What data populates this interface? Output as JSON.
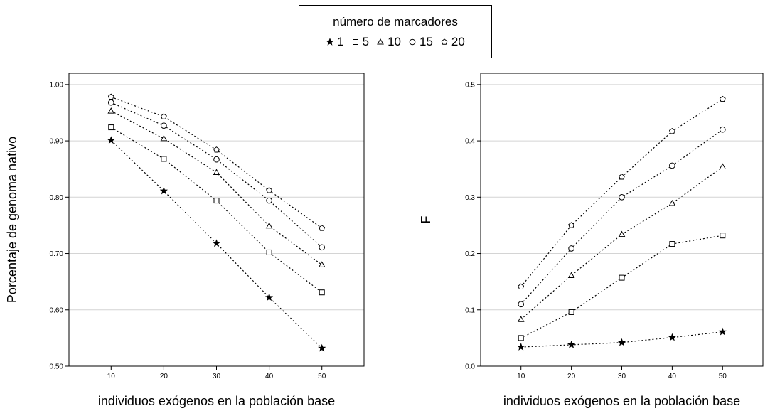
{
  "legend": {
    "title": "número de marcadores",
    "items": [
      {
        "label": "1",
        "marker": "star"
      },
      {
        "label": "5",
        "marker": "square"
      },
      {
        "label": "10",
        "marker": "triangle"
      },
      {
        "label": "15",
        "marker": "circle"
      },
      {
        "label": "20",
        "marker": "pentagon"
      }
    ]
  },
  "chart_data": [
    {
      "type": "line",
      "xlabel": "individuos exógenos en la población base",
      "ylabel": "Porcentaje de genoma nativo",
      "xlim": [
        2,
        58
      ],
      "ylim": [
        0.5,
        1.02
      ],
      "x_ticks": [
        10,
        20,
        30,
        40,
        50
      ],
      "y_ticks": [
        0.5,
        0.6,
        0.7,
        0.8,
        0.9,
        1.0
      ],
      "y_tick_labels": [
        "0.50",
        "0.60",
        "0.70",
        "0.80",
        "0.90",
        "1.00"
      ],
      "grid": "horizontal",
      "x": [
        10,
        20,
        30,
        40,
        50
      ],
      "series": [
        {
          "name": "1",
          "marker": "star",
          "values": [
            0.901,
            0.811,
            0.718,
            0.622,
            0.532
          ]
        },
        {
          "name": "5",
          "marker": "square",
          "values": [
            0.924,
            0.868,
            0.794,
            0.702,
            0.631
          ]
        },
        {
          "name": "10",
          "marker": "triangle",
          "values": [
            0.953,
            0.904,
            0.844,
            0.749,
            0.68
          ]
        },
        {
          "name": "15",
          "marker": "circle",
          "values": [
            0.968,
            0.927,
            0.867,
            0.794,
            0.711
          ]
        },
        {
          "name": "20",
          "marker": "pentagon",
          "values": [
            0.978,
            0.943,
            0.884,
            0.812,
            0.745
          ]
        }
      ]
    },
    {
      "type": "line",
      "xlabel": "individuos exógenos en la población base",
      "ylabel": "F",
      "xlim": [
        2,
        58
      ],
      "ylim": [
        0.0,
        0.52
      ],
      "x_ticks": [
        10,
        20,
        30,
        40,
        50
      ],
      "y_ticks": [
        0.0,
        0.1,
        0.2,
        0.3,
        0.4,
        0.5
      ],
      "y_tick_labels": [
        "0.0",
        "0.1",
        "0.2",
        "0.3",
        "0.4",
        "0.5"
      ],
      "grid": "horizontal",
      "x": [
        10,
        20,
        30,
        40,
        50
      ],
      "series": [
        {
          "name": "1",
          "marker": "star",
          "values": [
            0.034,
            0.038,
            0.042,
            0.051,
            0.061
          ]
        },
        {
          "name": "5",
          "marker": "square",
          "values": [
            0.05,
            0.096,
            0.157,
            0.217,
            0.232
          ]
        },
        {
          "name": "10",
          "marker": "triangle",
          "values": [
            0.083,
            0.161,
            0.234,
            0.289,
            0.354
          ]
        },
        {
          "name": "15",
          "marker": "circle",
          "values": [
            0.11,
            0.209,
            0.3,
            0.356,
            0.42
          ]
        },
        {
          "name": "20",
          "marker": "pentagon",
          "values": [
            0.141,
            0.25,
            0.336,
            0.417,
            0.474
          ]
        }
      ]
    }
  ]
}
